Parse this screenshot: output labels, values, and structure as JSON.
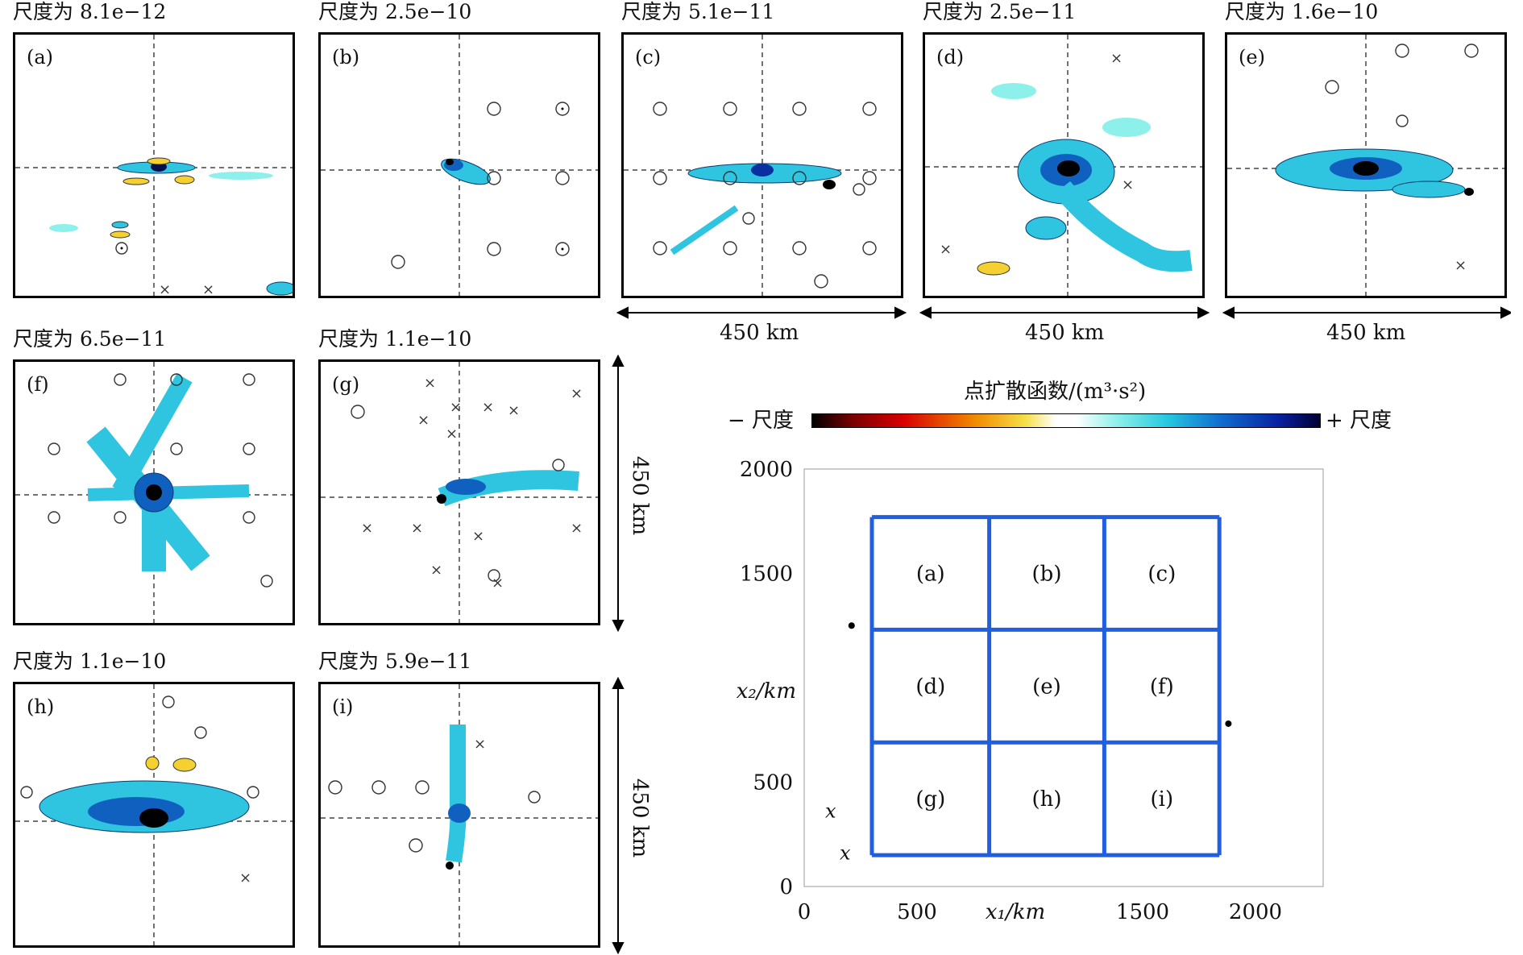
{
  "panels": [
    {
      "id": "a",
      "label": "(a)",
      "title": "尺度为 8.1e−12"
    },
    {
      "id": "b",
      "label": "(b)",
      "title": "尺度为 2.5e−10"
    },
    {
      "id": "c",
      "label": "(c)",
      "title": "尺度为 5.1e−11"
    },
    {
      "id": "d",
      "label": "(d)",
      "title": "尺度为 2.5e−11"
    },
    {
      "id": "e",
      "label": "(e)",
      "title": "尺度为 1.6e−10"
    },
    {
      "id": "f",
      "label": "(f)",
      "title": "尺度为 6.5e−11"
    },
    {
      "id": "g",
      "label": "(g)",
      "title": "尺度为 1.1e−10"
    },
    {
      "id": "h",
      "label": "(h)",
      "title": "尺度为 1.1e−10"
    },
    {
      "id": "i",
      "label": "(i)",
      "title": "尺度为 5.9e−11"
    }
  ],
  "dimension_label": "450 km",
  "colorbar": {
    "title": "点扩散函数/(m³·s²)",
    "neg_label": "− 尺度",
    "pos_label": "+ 尺度",
    "colors": [
      "#000000",
      "#d90000",
      "#f08a00",
      "#f5e04a",
      "#ffffff",
      "#25c8e0",
      "#1070d0",
      "#0820a0",
      "#000030"
    ]
  },
  "chart_data": {
    "type": "diagram",
    "title": "",
    "xlabel": "x₁/km",
    "ylabel": "x₂/km",
    "xlim": [
      0,
      2300
    ],
    "ylim": [
      0,
      2000
    ],
    "xticks": [
      0,
      500,
      1500,
      2000
    ],
    "yticks": [
      0,
      500,
      1500,
      2000
    ],
    "grid_x_edges": [
      300,
      820,
      1330,
      1840
    ],
    "grid_y_edges": [
      150,
      690,
      1230,
      1770
    ],
    "grid_color": "#1f5fe0",
    "cells": [
      {
        "label": "(a)",
        "row": 0,
        "col": 0
      },
      {
        "label": "(b)",
        "row": 0,
        "col": 1
      },
      {
        "label": "(c)",
        "row": 0,
        "col": 2
      },
      {
        "label": "(d)",
        "row": 1,
        "col": 0
      },
      {
        "label": "(e)",
        "row": 1,
        "col": 1
      },
      {
        "label": "(f)",
        "row": 1,
        "col": 2
      },
      {
        "label": "(g)",
        "row": 2,
        "col": 0
      },
      {
        "label": "(h)",
        "row": 2,
        "col": 1
      },
      {
        "label": "(i)",
        "row": 2,
        "col": 2
      }
    ],
    "marker_text": "x"
  }
}
